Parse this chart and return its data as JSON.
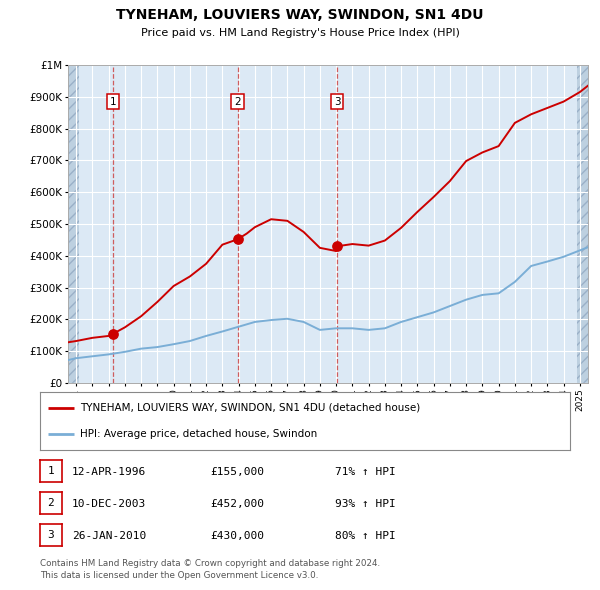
{
  "title": "TYNEHAM, LOUVIERS WAY, SWINDON, SN1 4DU",
  "subtitle": "Price paid vs. HM Land Registry's House Price Index (HPI)",
  "plot_bg_color": "#dce9f5",
  "grid_color": "#ffffff",
  "ylim": [
    0,
    1000000
  ],
  "yticks": [
    0,
    100000,
    200000,
    300000,
    400000,
    500000,
    600000,
    700000,
    800000,
    900000,
    1000000
  ],
  "ytick_labels": [
    "£0",
    "£100K",
    "£200K",
    "£300K",
    "£400K",
    "£500K",
    "£600K",
    "£700K",
    "£800K",
    "£900K",
    "£1M"
  ],
  "xlim_start": 1993.5,
  "xlim_end": 2025.5,
  "xticks": [
    1994,
    1995,
    1996,
    1997,
    1998,
    1999,
    2000,
    2001,
    2002,
    2003,
    2004,
    2005,
    2006,
    2007,
    2008,
    2009,
    2010,
    2011,
    2012,
    2013,
    2014,
    2015,
    2016,
    2017,
    2018,
    2019,
    2020,
    2021,
    2022,
    2023,
    2024,
    2025
  ],
  "sale_dates": [
    1996.28,
    2003.94,
    2010.07
  ],
  "sale_prices": [
    155000,
    452000,
    430000
  ],
  "sale_labels": [
    "1",
    "2",
    "3"
  ],
  "red_line_x": [
    1993.5,
    1994.0,
    1995.0,
    1996.0,
    1996.28,
    1997.0,
    1998.0,
    1999.0,
    2000.0,
    2001.0,
    2002.0,
    2003.0,
    2003.94,
    2004.5,
    2005.0,
    2006.0,
    2007.0,
    2008.0,
    2009.0,
    2010.0,
    2010.07,
    2011.0,
    2012.0,
    2013.0,
    2014.0,
    2015.0,
    2016.0,
    2017.0,
    2018.0,
    2019.0,
    2020.0,
    2021.0,
    2022.0,
    2023.0,
    2024.0,
    2025.0,
    2025.5
  ],
  "red_line_y": [
    128000,
    132000,
    142000,
    148000,
    155000,
    175000,
    210000,
    255000,
    305000,
    335000,
    375000,
    435000,
    452000,
    470000,
    490000,
    515000,
    510000,
    475000,
    425000,
    415000,
    430000,
    437000,
    432000,
    448000,
    488000,
    538000,
    585000,
    635000,
    698000,
    725000,
    745000,
    818000,
    845000,
    865000,
    885000,
    915000,
    935000
  ],
  "blue_line_x": [
    1993.5,
    1994.0,
    1995.0,
    1996.0,
    1997.0,
    1998.0,
    1999.0,
    2000.0,
    2001.0,
    2002.0,
    2003.0,
    2004.0,
    2005.0,
    2006.0,
    2007.0,
    2008.0,
    2009.0,
    2010.0,
    2011.0,
    2012.0,
    2013.0,
    2014.0,
    2015.0,
    2016.0,
    2017.0,
    2018.0,
    2019.0,
    2020.0,
    2021.0,
    2022.0,
    2023.0,
    2024.0,
    2025.0,
    2025.5
  ],
  "blue_line_y": [
    72000,
    78000,
    84000,
    90000,
    98000,
    108000,
    113000,
    122000,
    132000,
    148000,
    162000,
    177000,
    192000,
    198000,
    202000,
    192000,
    167000,
    172000,
    172000,
    167000,
    172000,
    192000,
    207000,
    222000,
    242000,
    262000,
    277000,
    282000,
    318000,
    368000,
    382000,
    397000,
    417000,
    427000
  ],
  "red_color": "#cc0000",
  "blue_color": "#7aaed6",
  "dashed_color": "#cc4444",
  "legend_label_red": "TYNEHAM, LOUVIERS WAY, SWINDON, SN1 4DU (detached house)",
  "legend_label_blue": "HPI: Average price, detached house, Swindon",
  "table_entries": [
    {
      "num": "1",
      "date": "12-APR-1996",
      "price": "£155,000",
      "hpi": "71% ↑ HPI"
    },
    {
      "num": "2",
      "date": "10-DEC-2003",
      "price": "£452,000",
      "hpi": "93% ↑ HPI"
    },
    {
      "num": "3",
      "date": "26-JAN-2010",
      "price": "£430,000",
      "hpi": "80% ↑ HPI"
    }
  ],
  "footer": "Contains HM Land Registry data © Crown copyright and database right 2024.\nThis data is licensed under the Open Government Licence v3.0."
}
